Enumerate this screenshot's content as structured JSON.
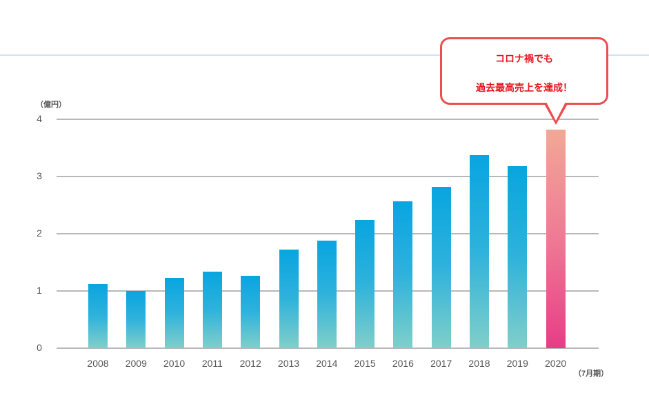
{
  "chart_data": {
    "type": "bar",
    "title": "",
    "ylabel": "（億円）",
    "xlabel": "（7月期）",
    "ylim": [
      0,
      4
    ],
    "yticks": [
      "0",
      "1",
      "2",
      "3",
      "4"
    ],
    "grid": true,
    "categories": [
      "2008",
      "2009",
      "2010",
      "2011",
      "2012",
      "2013",
      "2014",
      "2015",
      "2016",
      "2017",
      "2018",
      "2019",
      "2020"
    ],
    "values": [
      1.12,
      1.0,
      1.23,
      1.34,
      1.27,
      1.72,
      1.88,
      2.24,
      2.57,
      2.82,
      3.37,
      3.18,
      3.82
    ],
    "highlight_index": 12,
    "colors": {
      "bar_top": "#08a5e0",
      "bar_bottom": "#80cfc9",
      "highlight_top": "#f2a896",
      "highlight_bottom": "#e83d86",
      "callout_border": "#ec4d4f",
      "callout_text": "#e8141c"
    },
    "annotation": {
      "line1": "コロナ禍でも",
      "line2": "過去最高売上を達成！",
      "target": "2020"
    }
  }
}
